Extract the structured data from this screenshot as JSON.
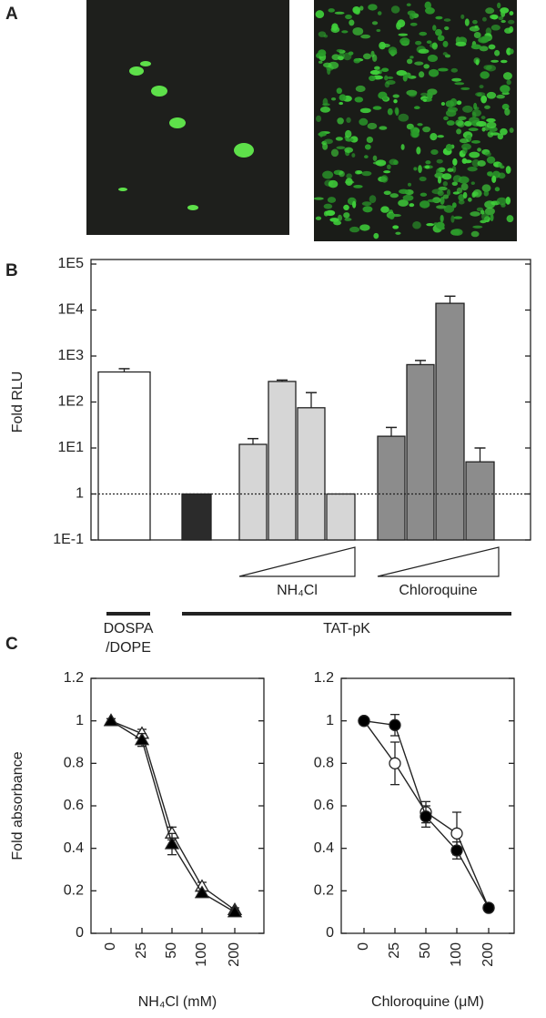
{
  "panel_labels": [
    "A",
    "B",
    "C"
  ],
  "chart_data": [
    {
      "type": "bar",
      "ylabel": "Fold RLU",
      "yscale": "log",
      "ylim": [
        0.1,
        100000
      ],
      "yticks": [
        {
          "value": 0.1,
          "label": "1E-1"
        },
        1,
        {
          "value": 10,
          "label": "1E1"
        },
        {
          "value": 100,
          "label": "1E2"
        },
        {
          "value": 1000,
          "label": "1E3"
        },
        {
          "value": 10000,
          "label": "1E4"
        },
        {
          "value": 100000,
          "label": "1E5"
        }
      ],
      "reference_line": 1,
      "categories": [
        null,
        null,
        null,
        null,
        null,
        null,
        null,
        null,
        null,
        null
      ],
      "values": [
        450,
        1,
        12,
        280,
        75,
        1,
        18,
        650,
        14000,
        5
      ],
      "errors": [
        80,
        null,
        4,
        20,
        85,
        null,
        10,
        150,
        6000,
        5
      ],
      "colors": [
        "#ffffff",
        "#2b2b2b",
        "#d6d6d6",
        "#d6d6d6",
        "#d6d6d6",
        "#d6d6d6",
        "#8c8c8c",
        "#8c8c8c",
        "#8c8c8c",
        "#8c8c8c"
      ],
      "gradient_labels": [
        "NH₄Cl",
        "Chloroquine"
      ],
      "carrier_labels": [
        [
          "DOSPA",
          "/DOPE"
        ],
        [
          "TAT-pK"
        ]
      ]
    },
    {
      "type": "line",
      "ylabel": "Fold absorbance",
      "xlabel": "NH₄Cl (mM)",
      "categories": [
        "0",
        "25",
        "50",
        "100",
        "200"
      ],
      "ylim": [
        0,
        1.2
      ],
      "yticks": [
        0,
        0.2,
        0.4,
        0.6,
        0.8,
        1,
        1.2
      ],
      "series": [
        {
          "marker": "triangle",
          "color": "#ffffff",
          "values": [
            1,
            0.94,
            0.47,
            0.22,
            0.11
          ],
          "errors": [
            0.01,
            0.02,
            0.03,
            0.02,
            0.01
          ]
        },
        {
          "marker": "triangle",
          "color": "#000000",
          "values": [
            1,
            0.91,
            0.42,
            0.19,
            0.1
          ],
          "errors": [
            0.01,
            0.03,
            0.05,
            0.01,
            0.01
          ]
        }
      ]
    },
    {
      "type": "line",
      "xlabel": "Chloroquine (μM)",
      "categories": [
        "0",
        "25",
        "50",
        "100",
        "200"
      ],
      "ylim": [
        0,
        1.2
      ],
      "yticks": [
        0,
        0.2,
        0.4,
        0.6,
        0.8,
        1,
        1.2
      ],
      "series": [
        {
          "marker": "circle",
          "color": "#ffffff",
          "values": [
            1,
            0.8,
            0.57,
            0.47,
            0.12
          ],
          "errors": [
            0.01,
            0.1,
            0.05,
            0.1,
            0.01
          ]
        },
        {
          "marker": "circle",
          "color": "#000000",
          "values": [
            1,
            0.98,
            0.55,
            0.39,
            0.12
          ],
          "errors": [
            0.01,
            0.05,
            0.05,
            0.04,
            0.01
          ]
        }
      ]
    }
  ]
}
